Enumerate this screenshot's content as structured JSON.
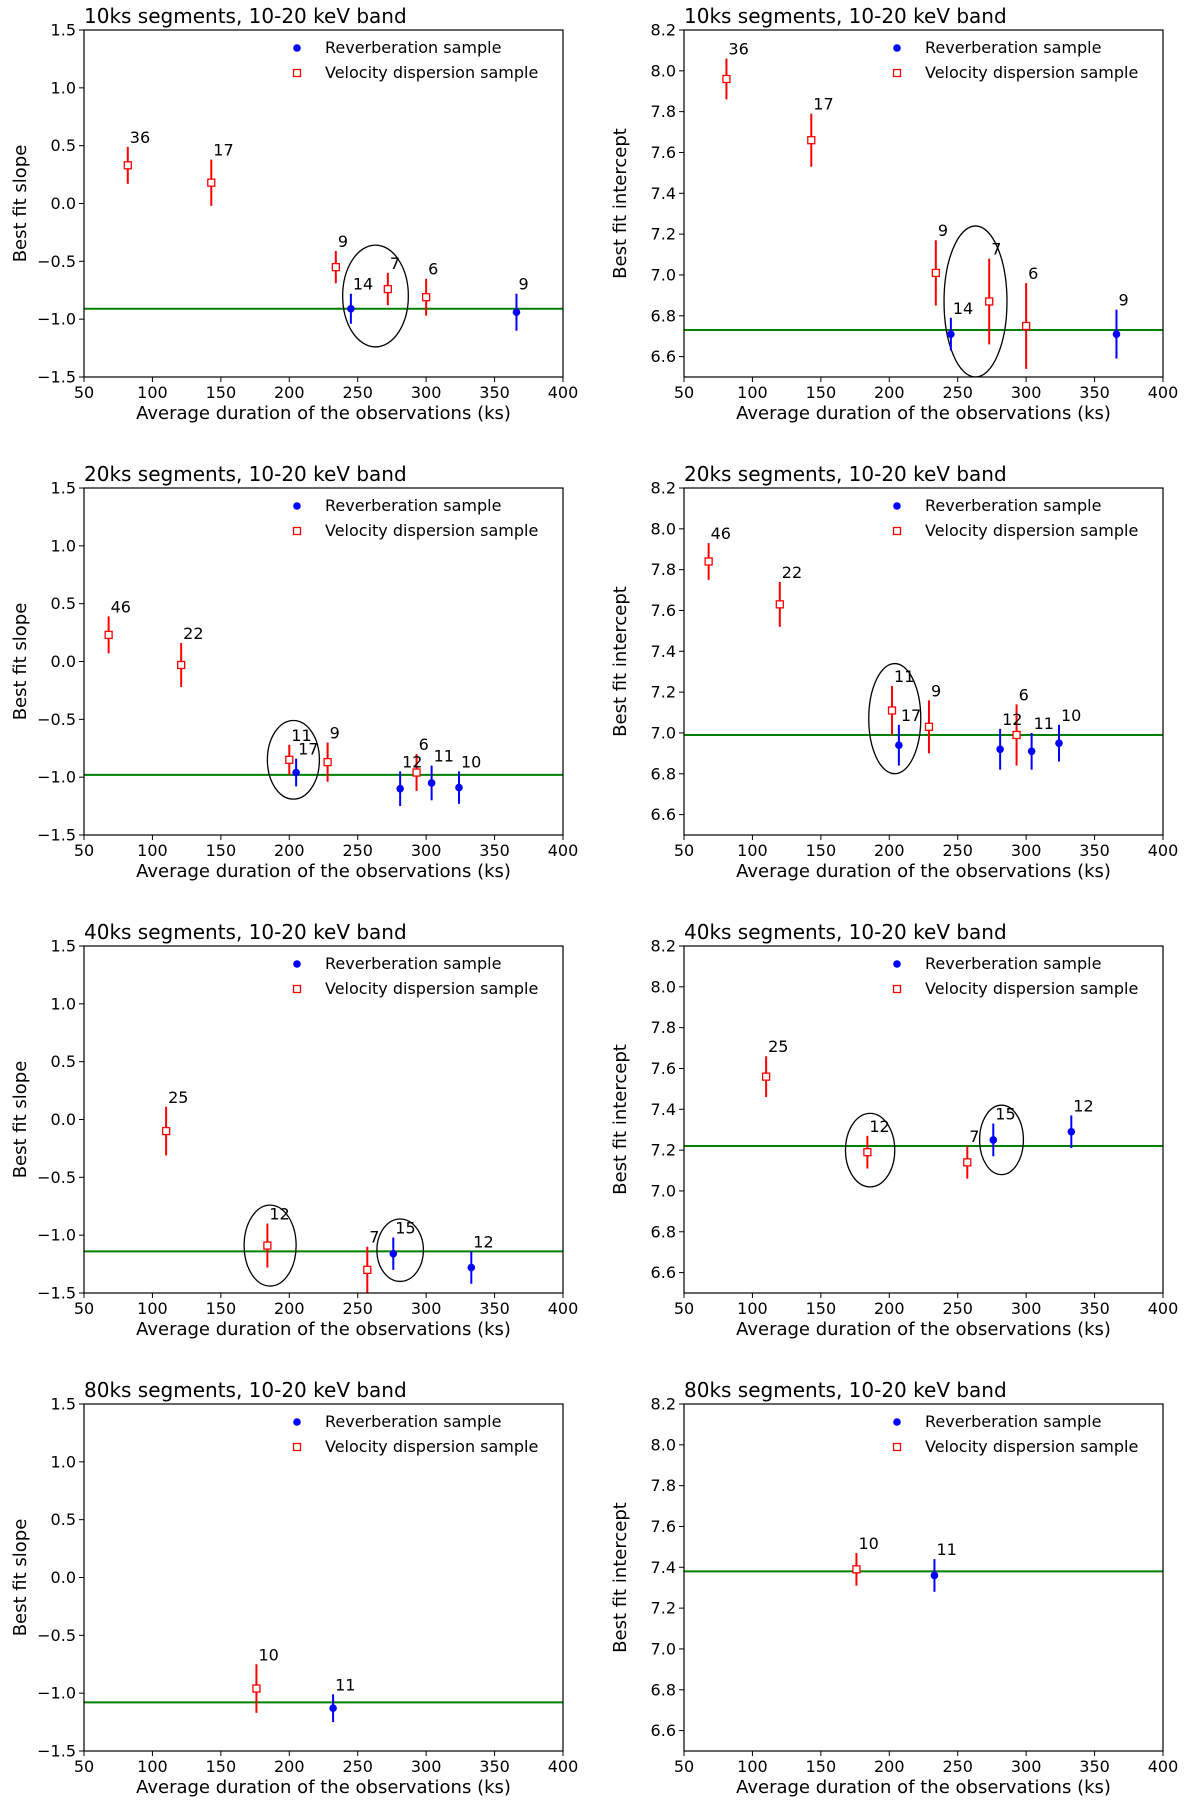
{
  "figure": {
    "colors": {
      "reverberation": "#0000ff",
      "velocity": "#ff0000",
      "fit_line": "#008000",
      "axes": "#000000"
    },
    "legend_location": "top-right",
    "legend": {
      "reverberation": "Reverberation sample",
      "velocity": "Velocity dispersion sample"
    }
  },
  "chart_data": [
    {
      "type": "scatter",
      "title": "10ks segments, 10-20 keV band",
      "xlabel": "Average duration of the observations (ks)",
      "ylabel": "Best fit slope",
      "xlim": [
        50,
        400
      ],
      "ylim": [
        -1.5,
        1.5
      ],
      "xticks": [
        50,
        100,
        150,
        200,
        250,
        300,
        350,
        400
      ],
      "yticks": [
        -1.5,
        -1.0,
        -0.5,
        0.0,
        0.5,
        1.0,
        1.5
      ],
      "ytick_labels": [
        "−1.5",
        "−1.0",
        "−0.5",
        "0.0",
        "0.5",
        "1.0",
        "1.5"
      ],
      "hline": -0.91,
      "series": [
        {
          "name": "Velocity dispersion sample",
          "marker": "open-square",
          "points": [
            {
              "x": 82,
              "y": 0.33,
              "err": 0.16,
              "label": "36"
            },
            {
              "x": 143,
              "y": 0.18,
              "err": 0.2,
              "label": "17"
            },
            {
              "x": 234,
              "y": -0.55,
              "err": 0.14,
              "label": "9"
            },
            {
              "x": 272,
              "y": -0.74,
              "err": 0.14,
              "label": "7"
            },
            {
              "x": 300,
              "y": -0.81,
              "err": 0.16,
              "label": "6"
            }
          ]
        },
        {
          "name": "Reverberation sample",
          "marker": "filled-circle",
          "points": [
            {
              "x": 245,
              "y": -0.91,
              "err": 0.13,
              "label": "14"
            },
            {
              "x": 366,
              "y": -0.94,
              "err": 0.16,
              "label": "9"
            }
          ]
        }
      ],
      "highlight_ellipses": [
        {
          "x": 263,
          "y": -0.8,
          "rx": 24,
          "ry": 0.44
        }
      ]
    },
    {
      "type": "scatter",
      "title": "10ks segments, 10-20 keV band",
      "xlabel": "Average duration of the observations (ks)",
      "ylabel": "Best fit intercept",
      "xlim": [
        50,
        400
      ],
      "ylim": [
        6.5,
        8.2
      ],
      "xticks": [
        50,
        100,
        150,
        200,
        250,
        300,
        350,
        400
      ],
      "yticks": [
        6.6,
        6.8,
        7.0,
        7.2,
        7.4,
        7.6,
        7.8,
        8.0,
        8.2
      ],
      "ytick_labels": [
        "6.6",
        "6.8",
        "7.0",
        "7.2",
        "7.4",
        "7.6",
        "7.8",
        "8.0",
        "8.2"
      ],
      "hline": 6.73,
      "series": [
        {
          "name": "Velocity dispersion sample",
          "marker": "open-square",
          "points": [
            {
              "x": 81,
              "y": 7.96,
              "err": 0.1,
              "label": "36"
            },
            {
              "x": 143,
              "y": 7.66,
              "err": 0.13,
              "label": "17"
            },
            {
              "x": 234,
              "y": 7.01,
              "err": 0.16,
              "label": "9"
            },
            {
              "x": 273,
              "y": 6.87,
              "err": 0.21,
              "label": "7"
            },
            {
              "x": 300,
              "y": 6.75,
              "err": 0.21,
              "label": "6"
            }
          ]
        },
        {
          "name": "Reverberation sample",
          "marker": "filled-circle",
          "points": [
            {
              "x": 245,
              "y": 6.71,
              "err": 0.08,
              "label": "14"
            },
            {
              "x": 366,
              "y": 6.71,
              "err": 0.12,
              "label": "9"
            }
          ]
        }
      ],
      "highlight_ellipses": [
        {
          "x": 263,
          "y": 6.87,
          "rx": 23,
          "ry": 0.37
        }
      ]
    },
    {
      "type": "scatter",
      "title": "20ks segments, 10-20 keV band",
      "xlabel": "Average duration of the observations (ks)",
      "ylabel": "Best fit slope",
      "xlim": [
        50,
        400
      ],
      "ylim": [
        -1.5,
        1.5
      ],
      "xticks": [
        50,
        100,
        150,
        200,
        250,
        300,
        350,
        400
      ],
      "yticks": [
        -1.5,
        -1.0,
        -0.5,
        0.0,
        0.5,
        1.0,
        1.5
      ],
      "ytick_labels": [
        "−1.5",
        "−1.0",
        "−0.5",
        "0.0",
        "0.5",
        "1.0",
        "1.5"
      ],
      "hline": -0.98,
      "series": [
        {
          "name": "Velocity dispersion sample",
          "marker": "open-square",
          "points": [
            {
              "x": 68,
              "y": 0.23,
              "err": 0.16,
              "label": "46"
            },
            {
              "x": 121,
              "y": -0.03,
              "err": 0.19,
              "label": "22"
            },
            {
              "x": 200,
              "y": -0.85,
              "err": 0.13,
              "label": "11"
            },
            {
              "x": 228,
              "y": -0.87,
              "err": 0.17,
              "label": "9"
            },
            {
              "x": 293,
              "y": -0.96,
              "err": 0.16,
              "label": "6"
            }
          ]
        },
        {
          "name": "Reverberation sample",
          "marker": "filled-circle",
          "points": [
            {
              "x": 205,
              "y": -0.96,
              "err": 0.12,
              "label": "17"
            },
            {
              "x": 281,
              "y": -1.1,
              "err": 0.15,
              "label": "12"
            },
            {
              "x": 304,
              "y": -1.05,
              "err": 0.15,
              "label": "11"
            },
            {
              "x": 324,
              "y": -1.09,
              "err": 0.14,
              "label": "10"
            }
          ]
        }
      ],
      "highlight_ellipses": [
        {
          "x": 203,
          "y": -0.85,
          "rx": 19,
          "ry": 0.34
        }
      ]
    },
    {
      "type": "scatter",
      "title": "20ks segments, 10-20 keV band",
      "xlabel": "Average duration of the observations (ks)",
      "ylabel": "Best fit intercept",
      "xlim": [
        50,
        400
      ],
      "ylim": [
        6.5,
        8.2
      ],
      "xticks": [
        50,
        100,
        150,
        200,
        250,
        300,
        350,
        400
      ],
      "yticks": [
        6.6,
        6.8,
        7.0,
        7.2,
        7.4,
        7.6,
        7.8,
        8.0,
        8.2
      ],
      "ytick_labels": [
        "6.6",
        "6.8",
        "7.0",
        "7.2",
        "7.4",
        "7.6",
        "7.8",
        "8.0",
        "8.2"
      ],
      "hline": 6.99,
      "series": [
        {
          "name": "Velocity dispersion sample",
          "marker": "open-square",
          "points": [
            {
              "x": 68,
              "y": 7.84,
              "err": 0.09,
              "label": "46"
            },
            {
              "x": 120,
              "y": 7.63,
              "err": 0.11,
              "label": "22"
            },
            {
              "x": 202,
              "y": 7.11,
              "err": 0.12,
              "label": "11"
            },
            {
              "x": 229,
              "y": 7.03,
              "err": 0.13,
              "label": "9"
            },
            {
              "x": 293,
              "y": 6.99,
              "err": 0.15,
              "label": "6"
            }
          ]
        },
        {
          "name": "Reverberation sample",
          "marker": "filled-circle",
          "points": [
            {
              "x": 207,
              "y": 6.94,
              "err": 0.1,
              "label": "17"
            },
            {
              "x": 281,
              "y": 6.92,
              "err": 0.1,
              "label": "12"
            },
            {
              "x": 304,
              "y": 6.91,
              "err": 0.09,
              "label": "11"
            },
            {
              "x": 324,
              "y": 6.95,
              "err": 0.09,
              "label": "10"
            }
          ]
        }
      ],
      "highlight_ellipses": [
        {
          "x": 204,
          "y": 7.07,
          "rx": 19,
          "ry": 0.27
        }
      ]
    },
    {
      "type": "scatter",
      "title": "40ks segments, 10-20 keV band",
      "xlabel": "Average duration of the observations (ks)",
      "ylabel": "Best fit slope",
      "xlim": [
        50,
        400
      ],
      "ylim": [
        -1.5,
        1.5
      ],
      "xticks": [
        50,
        100,
        150,
        200,
        250,
        300,
        350,
        400
      ],
      "yticks": [
        -1.5,
        -1.0,
        -0.5,
        0.0,
        0.5,
        1.0,
        1.5
      ],
      "ytick_labels": [
        "−1.5",
        "−1.0",
        "−0.5",
        "0.0",
        "0.5",
        "1.0",
        "1.5"
      ],
      "hline": -1.14,
      "series": [
        {
          "name": "Velocity dispersion sample",
          "marker": "open-square",
          "points": [
            {
              "x": 110,
              "y": -0.1,
              "err": 0.21,
              "label": "25"
            },
            {
              "x": 184,
              "y": -1.09,
              "err": 0.19,
              "label": "12"
            },
            {
              "x": 257,
              "y": -1.3,
              "err": 0.2,
              "label": "7"
            }
          ]
        },
        {
          "name": "Reverberation sample",
          "marker": "filled-circle",
          "points": [
            {
              "x": 276,
              "y": -1.16,
              "err": 0.14,
              "label": "15"
            },
            {
              "x": 333,
              "y": -1.28,
              "err": 0.14,
              "label": "12"
            }
          ]
        }
      ],
      "highlight_ellipses": [
        {
          "x": 186,
          "y": -1.09,
          "rx": 19,
          "ry": 0.35
        },
        {
          "x": 281,
          "y": -1.13,
          "rx": 17,
          "ry": 0.27
        }
      ]
    },
    {
      "type": "scatter",
      "title": "40ks segments, 10-20 keV band",
      "xlabel": "Average duration of the observations (ks)",
      "ylabel": "Best fit intercept",
      "xlim": [
        50,
        400
      ],
      "ylim": [
        6.5,
        8.2
      ],
      "xticks": [
        50,
        100,
        150,
        200,
        250,
        300,
        350,
        400
      ],
      "yticks": [
        6.6,
        6.8,
        7.0,
        7.2,
        7.4,
        7.6,
        7.8,
        8.0,
        8.2
      ],
      "ytick_labels": [
        "6.6",
        "6.8",
        "7.0",
        "7.2",
        "7.4",
        "7.6",
        "7.8",
        "8.0",
        "8.2"
      ],
      "hline": 7.22,
      "series": [
        {
          "name": "Velocity dispersion sample",
          "marker": "open-square",
          "points": [
            {
              "x": 110,
              "y": 7.56,
              "err": 0.1,
              "label": "25"
            },
            {
              "x": 184,
              "y": 7.19,
              "err": 0.08,
              "label": "12"
            },
            {
              "x": 257,
              "y": 7.14,
              "err": 0.08,
              "label": "7"
            }
          ]
        },
        {
          "name": "Reverberation sample",
          "marker": "filled-circle",
          "points": [
            {
              "x": 276,
              "y": 7.25,
              "err": 0.08,
              "label": "15"
            },
            {
              "x": 333,
              "y": 7.29,
              "err": 0.08,
              "label": "12"
            }
          ]
        }
      ],
      "highlight_ellipses": [
        {
          "x": 186,
          "y": 7.2,
          "rx": 18,
          "ry": 0.18
        },
        {
          "x": 282,
          "y": 7.25,
          "rx": 16,
          "ry": 0.17
        }
      ]
    },
    {
      "type": "scatter",
      "title": "80ks segments, 10-20 keV band",
      "xlabel": "Average duration of the observations (ks)",
      "ylabel": "Best fit slope",
      "xlim": [
        50,
        400
      ],
      "ylim": [
        -1.5,
        1.5
      ],
      "xticks": [
        50,
        100,
        150,
        200,
        250,
        300,
        350,
        400
      ],
      "yticks": [
        -1.5,
        -1.0,
        -0.5,
        0.0,
        0.5,
        1.0,
        1.5
      ],
      "ytick_labels": [
        "−1.5",
        "−1.0",
        "−0.5",
        "0.0",
        "0.5",
        "1.0",
        "1.5"
      ],
      "hline": -1.08,
      "series": [
        {
          "name": "Velocity dispersion sample",
          "marker": "open-square",
          "points": [
            {
              "x": 176,
              "y": -0.96,
              "err": 0.21,
              "label": "10"
            }
          ]
        },
        {
          "name": "Reverberation sample",
          "marker": "filled-circle",
          "points": [
            {
              "x": 232,
              "y": -1.13,
              "err": 0.12,
              "label": "11"
            }
          ]
        }
      ],
      "highlight_ellipses": []
    },
    {
      "type": "scatter",
      "title": "80ks segments, 10-20 keV band",
      "xlabel": "Average duration of the observations (ks)",
      "ylabel": "Best fit intercept",
      "xlim": [
        50,
        400
      ],
      "ylim": [
        6.5,
        8.2
      ],
      "xticks": [
        50,
        100,
        150,
        200,
        250,
        300,
        350,
        400
      ],
      "yticks": [
        6.6,
        6.8,
        7.0,
        7.2,
        7.4,
        7.6,
        7.8,
        8.0,
        8.2
      ],
      "ytick_labels": [
        "6.6",
        "6.8",
        "7.0",
        "7.2",
        "7.4",
        "7.6",
        "7.8",
        "8.0",
        "8.2"
      ],
      "hline": 7.38,
      "series": [
        {
          "name": "Velocity dispersion sample",
          "marker": "open-square",
          "points": [
            {
              "x": 176,
              "y": 7.39,
              "err": 0.08,
              "label": "10"
            }
          ]
        },
        {
          "name": "Reverberation sample",
          "marker": "filled-circle",
          "points": [
            {
              "x": 233,
              "y": 7.36,
              "err": 0.08,
              "label": "11"
            }
          ]
        }
      ],
      "highlight_ellipses": []
    }
  ]
}
